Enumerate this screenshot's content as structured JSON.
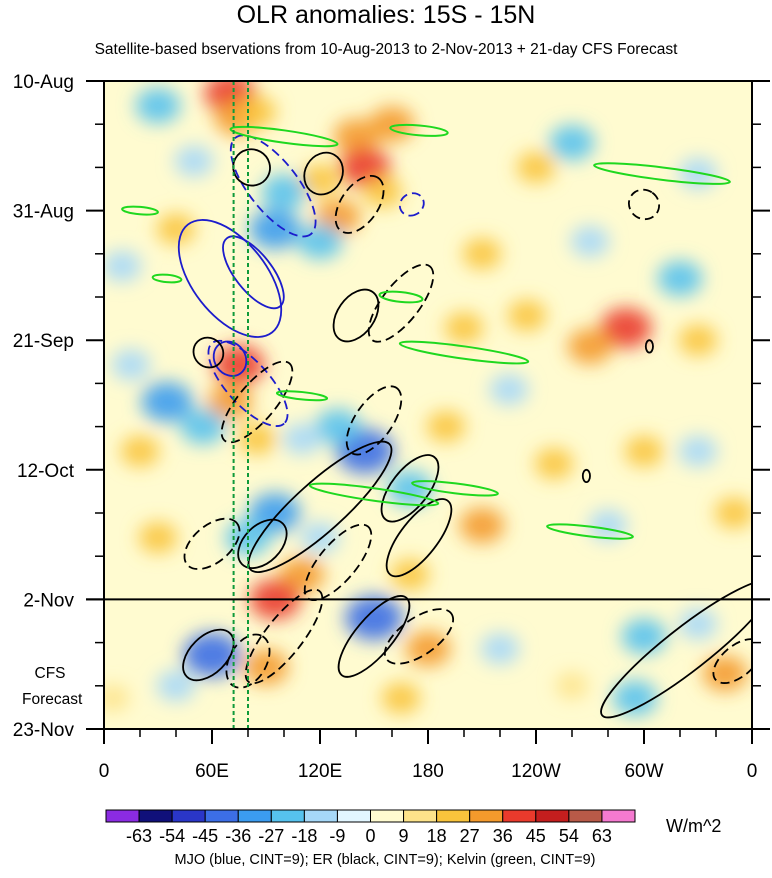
{
  "chart_data": {
    "type": "heatmap",
    "title": "OLR anomalies: 15S - 15N",
    "subtitle": "Satellite-based bservations from 10-Aug-2013 to 2-Nov-2013 + 21-day CFS Forecast",
    "xlabel": "",
    "ylabel": "",
    "x_ticks": [
      "0",
      "60E",
      "120E",
      "180",
      "120W",
      "60W",
      "0"
    ],
    "x_tick_values": [
      0,
      60,
      120,
      180,
      240,
      300,
      360
    ],
    "xlim": [
      0,
      360
    ],
    "y_ticks": [
      "10-Aug",
      "31-Aug",
      "21-Sep",
      "12-Oct",
      "2-Nov",
      "23-Nov"
    ],
    "y_tick_values": [
      0,
      21,
      42,
      63,
      84,
      105
    ],
    "ylim": [
      0,
      105
    ],
    "forecast_start_day": 84,
    "forecast_label_line1": "CFS",
    "forecast_label_line2": "Forecast",
    "units": "W/m^2",
    "colorbar_levels": [
      "-63",
      "-54",
      "-45",
      "-36",
      "-27",
      "-18",
      "-9",
      "0",
      "9",
      "18",
      "27",
      "36",
      "45",
      "54",
      "63"
    ],
    "colorbar_colors": [
      "#8b2be2",
      "#10107a",
      "#2a36c8",
      "#3c6ee6",
      "#3b9cf0",
      "#56c2ee",
      "#a6d8f8",
      "#e2f6ff",
      "#fffbd0",
      "#fde38a",
      "#f9c43c",
      "#f49a2c",
      "#ea3a2c",
      "#c41e1e",
      "#b85a48",
      "#f57ad0"
    ],
    "reference_lines_lon": [
      72,
      80
    ],
    "reference_line_color": "#0f9a3a",
    "legend_note": "MJO (blue, CINT=9); ER (black, CINT=9); Kelvin (green, CINT=9)",
    "series_colors": {
      "MJO": "#1c1ccc",
      "ER": "#000000",
      "Kelvin": "#1fd81f"
    },
    "anomaly_patches": [
      {
        "lon": 70,
        "day": 2,
        "value": 36
      },
      {
        "lon": 74,
        "day": 6,
        "value": 27
      },
      {
        "lon": 85,
        "day": 5,
        "value": 18
      },
      {
        "lon": 140,
        "day": 9,
        "value": 27
      },
      {
        "lon": 145,
        "day": 14,
        "value": 36
      },
      {
        "lon": 160,
        "day": 7,
        "value": 27
      },
      {
        "lon": 120,
        "day": 16,
        "value": 18
      },
      {
        "lon": 130,
        "day": 22,
        "value": 27
      },
      {
        "lon": 155,
        "day": 18,
        "value": 18
      },
      {
        "lon": 30,
        "day": 4,
        "value": -27
      },
      {
        "lon": 50,
        "day": 13,
        "value": -18
      },
      {
        "lon": 100,
        "day": 18,
        "value": -27
      },
      {
        "lon": 95,
        "day": 24,
        "value": -36
      },
      {
        "lon": 120,
        "day": 26,
        "value": -27
      },
      {
        "lon": 10,
        "day": 30,
        "value": -18
      },
      {
        "lon": 260,
        "day": 10,
        "value": -27
      },
      {
        "lon": 270,
        "day": 26,
        "value": -18
      },
      {
        "lon": 320,
        "day": 32,
        "value": -27
      },
      {
        "lon": 330,
        "day": 15,
        "value": -18
      },
      {
        "lon": 240,
        "day": 14,
        "value": 18
      },
      {
        "lon": 210,
        "day": 28,
        "value": 18
      },
      {
        "lon": 290,
        "day": 40,
        "value": 36
      },
      {
        "lon": 270,
        "day": 43,
        "value": 27
      },
      {
        "lon": 235,
        "day": 38,
        "value": 18
      },
      {
        "lon": 200,
        "day": 40,
        "value": 18
      },
      {
        "lon": 75,
        "day": 46,
        "value": 36
      },
      {
        "lon": 70,
        "day": 52,
        "value": 27
      },
      {
        "lon": 85,
        "day": 58,
        "value": 18
      },
      {
        "lon": 35,
        "day": 52,
        "value": -36
      },
      {
        "lon": 55,
        "day": 56,
        "value": -27
      },
      {
        "lon": 15,
        "day": 46,
        "value": -18
      },
      {
        "lon": 145,
        "day": 60,
        "value": -45
      },
      {
        "lon": 130,
        "day": 56,
        "value": -27
      },
      {
        "lon": 170,
        "day": 66,
        "value": -27
      },
      {
        "lon": 110,
        "day": 58,
        "value": -18
      },
      {
        "lon": 300,
        "day": 60,
        "value": 18
      },
      {
        "lon": 250,
        "day": 62,
        "value": 18
      },
      {
        "lon": 210,
        "day": 72,
        "value": 27
      },
      {
        "lon": 95,
        "day": 70,
        "value": -36
      },
      {
        "lon": 80,
        "day": 74,
        "value": -27
      },
      {
        "lon": 120,
        "day": 74,
        "value": -18
      },
      {
        "lon": 110,
        "day": 80,
        "value": 27
      },
      {
        "lon": 95,
        "day": 84,
        "value": 36
      },
      {
        "lon": 30,
        "day": 74,
        "value": 18
      },
      {
        "lon": 170,
        "day": 80,
        "value": 18
      },
      {
        "lon": 150,
        "day": 87,
        "value": -45
      },
      {
        "lon": 60,
        "day": 93,
        "value": -45
      },
      {
        "lon": 40,
        "day": 98,
        "value": -18
      },
      {
        "lon": 90,
        "day": 95,
        "value": 27
      },
      {
        "lon": 180,
        "day": 92,
        "value": 27
      },
      {
        "lon": 165,
        "day": 100,
        "value": 18
      },
      {
        "lon": 300,
        "day": 90,
        "value": -27
      },
      {
        "lon": 295,
        "day": 100,
        "value": -27
      },
      {
        "lon": 330,
        "day": 88,
        "value": -18
      },
      {
        "lon": 345,
        "day": 96,
        "value": 27
      },
      {
        "lon": 220,
        "day": 92,
        "value": -18
      },
      {
        "lon": 260,
        "day": 98,
        "value": 9
      },
      {
        "lon": 5,
        "day": 100,
        "value": 9
      },
      {
        "lon": 350,
        "day": 70,
        "value": 18
      },
      {
        "lon": 330,
        "day": 60,
        "value": -18
      },
      {
        "lon": 280,
        "day": 72,
        "value": -18
      },
      {
        "lon": 40,
        "day": 24,
        "value": 18
      },
      {
        "lon": 20,
        "day": 60,
        "value": 18
      },
      {
        "lon": 225,
        "day": 50,
        "value": -18
      },
      {
        "lon": 190,
        "day": 56,
        "value": 18
      },
      {
        "lon": 330,
        "day": 42,
        "value": 18
      }
    ],
    "series": [
      {
        "name": "MJO",
        "style": "solid",
        "contours": [
          {
            "lon": 70,
            "day": 32,
            "rx_deg": 38,
            "ry_days": 6,
            "angle_deg": 52
          },
          {
            "lon": 83,
            "day": 31,
            "rx_deg": 24,
            "ry_days": 3,
            "angle_deg": 52
          },
          {
            "lon": 70,
            "day": 45,
            "rx_deg": 10,
            "ry_days": 2.5,
            "angle_deg": 55
          }
        ]
      },
      {
        "name": "MJO",
        "style": "dashed",
        "contours": [
          {
            "lon": 94,
            "day": 17,
            "rx_deg": 34,
            "ry_days": 4,
            "angle_deg": 52
          },
          {
            "lon": 80,
            "day": 49,
            "rx_deg": 30,
            "ry_days": 3.5,
            "angle_deg": 48
          },
          {
            "lon": 171,
            "day": 20,
            "rx_deg": 6,
            "ry_days": 2,
            "angle_deg": 60
          }
        ]
      },
      {
        "name": "ER",
        "style": "solid",
        "contours": [
          {
            "lon": 82,
            "day": 14,
            "rx_deg": 10,
            "ry_days": 3,
            "angle_deg": -60
          },
          {
            "lon": 122,
            "day": 15,
            "rx_deg": 12,
            "ry_days": 3,
            "angle_deg": -60
          },
          {
            "lon": 140,
            "day": 38,
            "rx_deg": 16,
            "ry_days": 3,
            "angle_deg": -55
          },
          {
            "lon": 58,
            "day": 44,
            "rx_deg": 8,
            "ry_days": 2.5,
            "angle_deg": -45
          },
          {
            "lon": 120,
            "day": 69,
            "rx_deg": 52,
            "ry_days": 4,
            "angle_deg": -42
          },
          {
            "lon": 88,
            "day": 75,
            "rx_deg": 16,
            "ry_days": 3,
            "angle_deg": -45
          },
          {
            "lon": 170,
            "day": 66,
            "rx_deg": 22,
            "ry_days": 3,
            "angle_deg": -52
          },
          {
            "lon": 175,
            "day": 74,
            "rx_deg": 26,
            "ry_days": 3,
            "angle_deg": -52
          },
          {
            "lon": 58,
            "day": 93,
            "rx_deg": 17,
            "ry_days": 3,
            "angle_deg": -45
          },
          {
            "lon": 150,
            "day": 90,
            "rx_deg": 28,
            "ry_days": 3,
            "angle_deg": -50
          },
          {
            "lon": 324,
            "day": 92,
            "rx_deg": 60,
            "ry_days": 3.5,
            "angle_deg": -38
          },
          {
            "lon": 268,
            "day": 64,
            "rx_deg": 2,
            "ry_days": 1,
            "angle_deg": 0
          },
          {
            "lon": 303,
            "day": 43,
            "rx_deg": 2,
            "ry_days": 1,
            "angle_deg": 0
          }
        ]
      },
      {
        "name": "ER",
        "style": "dashed",
        "contours": [
          {
            "lon": 142,
            "day": 20,
            "rx_deg": 18,
            "ry_days": 3,
            "angle_deg": -55
          },
          {
            "lon": 165,
            "day": 36,
            "rx_deg": 26,
            "ry_days": 3,
            "angle_deg": -52
          },
          {
            "lon": 85,
            "day": 52,
            "rx_deg": 28,
            "ry_days": 3,
            "angle_deg": -50
          },
          {
            "lon": 150,
            "day": 55,
            "rx_deg": 22,
            "ry_days": 3,
            "angle_deg": -55
          },
          {
            "lon": 60,
            "day": 75,
            "rx_deg": 18,
            "ry_days": 3,
            "angle_deg": -40
          },
          {
            "lon": 130,
            "day": 78,
            "rx_deg": 26,
            "ry_days": 3,
            "angle_deg": -50
          },
          {
            "lon": 100,
            "day": 90,
            "rx_deg": 32,
            "ry_days": 3,
            "angle_deg": -52
          },
          {
            "lon": 80,
            "day": 94,
            "rx_deg": 16,
            "ry_days": 3,
            "angle_deg": -60
          },
          {
            "lon": 175,
            "day": 90,
            "rx_deg": 22,
            "ry_days": 3,
            "angle_deg": -35
          },
          {
            "lon": 300,
            "day": 20,
            "rx_deg": 8,
            "ry_days": 2.5,
            "angle_deg": -55
          },
          {
            "lon": 352,
            "day": 94,
            "rx_deg": 16,
            "ry_days": 2.5,
            "angle_deg": -40
          }
        ]
      },
      {
        "name": "Kelvin",
        "style": "solid",
        "contours": [
          {
            "lon": 100,
            "day": 9,
            "rx_deg": 30,
            "ry_days": 1,
            "angle_deg": 8
          },
          {
            "lon": 175,
            "day": 8,
            "rx_deg": 16,
            "ry_days": 0.8,
            "angle_deg": 5
          },
          {
            "lon": 310,
            "day": 15,
            "rx_deg": 38,
            "ry_days": 1,
            "angle_deg": 7
          },
          {
            "lon": 165,
            "day": 35,
            "rx_deg": 12,
            "ry_days": 0.8,
            "angle_deg": 6
          },
          {
            "lon": 200,
            "day": 44,
            "rx_deg": 36,
            "ry_days": 1,
            "angle_deg": 8
          },
          {
            "lon": 150,
            "day": 67,
            "rx_deg": 36,
            "ry_days": 1,
            "angle_deg": 8
          },
          {
            "lon": 195,
            "day": 66,
            "rx_deg": 24,
            "ry_days": 0.8,
            "angle_deg": 7
          },
          {
            "lon": 270,
            "day": 73,
            "rx_deg": 24,
            "ry_days": 0.8,
            "angle_deg": 7
          },
          {
            "lon": 20,
            "day": 21,
            "rx_deg": 10,
            "ry_days": 0.6,
            "angle_deg": 5
          },
          {
            "lon": 35,
            "day": 32,
            "rx_deg": 8,
            "ry_days": 0.6,
            "angle_deg": 5
          },
          {
            "lon": 110,
            "day": 51,
            "rx_deg": 14,
            "ry_days": 0.6,
            "angle_deg": 6
          }
        ]
      }
    ]
  }
}
